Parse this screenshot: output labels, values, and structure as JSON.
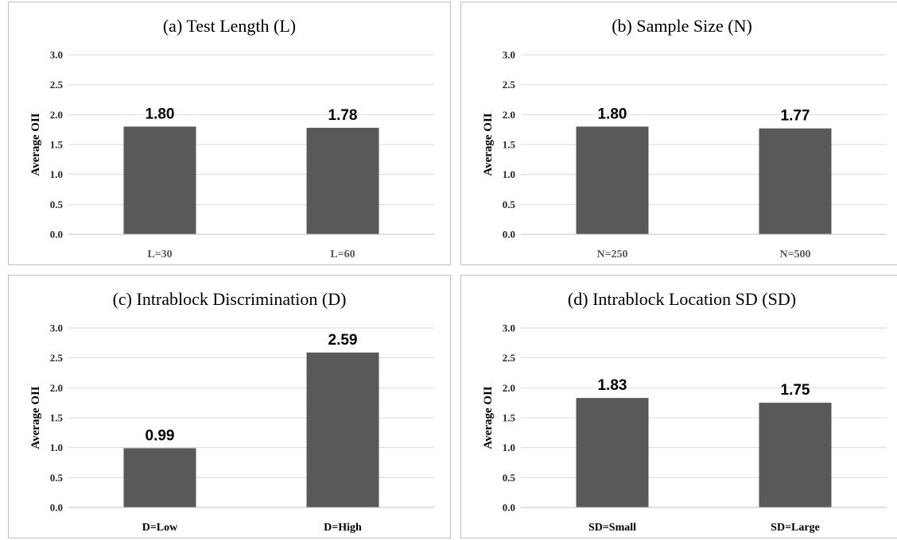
{
  "bar_color": "#595959",
  "chart_data": [
    {
      "type": "bar",
      "title": "(a) Test Length (L)",
      "ylabel": "Average OII",
      "xlabel": "",
      "categories": [
        "L=30",
        "L=60"
      ],
      "values": [
        1.8,
        1.78
      ],
      "data_labels": [
        "1.80",
        "1.78"
      ],
      "ylim": [
        0,
        3
      ],
      "yticks": [
        "0.0",
        "0.5",
        "1.0",
        "1.5",
        "2.0",
        "2.5",
        "3.0"
      ],
      "grid": true,
      "legend": "none",
      "xtick_color": "#595959"
    },
    {
      "type": "bar",
      "title": "(b) Sample Size (N)",
      "ylabel": "Average OII",
      "xlabel": "",
      "categories": [
        "N=250",
        "N=500"
      ],
      "values": [
        1.8,
        1.77
      ],
      "data_labels": [
        "1.80",
        "1.77"
      ],
      "ylim": [
        0,
        3
      ],
      "yticks": [
        "0.0",
        "0.5",
        "1.0",
        "1.5",
        "2.0",
        "2.5",
        "3.0"
      ],
      "grid": true,
      "legend": "none",
      "xtick_color": "#595959"
    },
    {
      "type": "bar",
      "title": "(c) Intrablock Discrimination (D)",
      "ylabel": "Average OII",
      "xlabel": "",
      "categories": [
        "D=Low",
        "D=High"
      ],
      "values": [
        0.99,
        2.59
      ],
      "data_labels": [
        "0.99",
        "2.59"
      ],
      "ylim": [
        0,
        3
      ],
      "yticks": [
        "0.0",
        "0.5",
        "1.0",
        "1.5",
        "2.0",
        "2.5",
        "3.0"
      ],
      "grid": true,
      "legend": "none",
      "xtick_color": "#000000"
    },
    {
      "type": "bar",
      "title": "(d) Intrablock Location SD (SD)",
      "ylabel": "Average OII",
      "xlabel": "",
      "categories": [
        "SD=Small",
        "SD=Large"
      ],
      "values": [
        1.83,
        1.75
      ],
      "data_labels": [
        "1.83",
        "1.75"
      ],
      "ylim": [
        0,
        3
      ],
      "yticks": [
        "0.0",
        "0.5",
        "1.0",
        "1.5",
        "2.0",
        "2.5",
        "3.0"
      ],
      "grid": true,
      "legend": "none",
      "xtick_color": "#000000"
    }
  ]
}
